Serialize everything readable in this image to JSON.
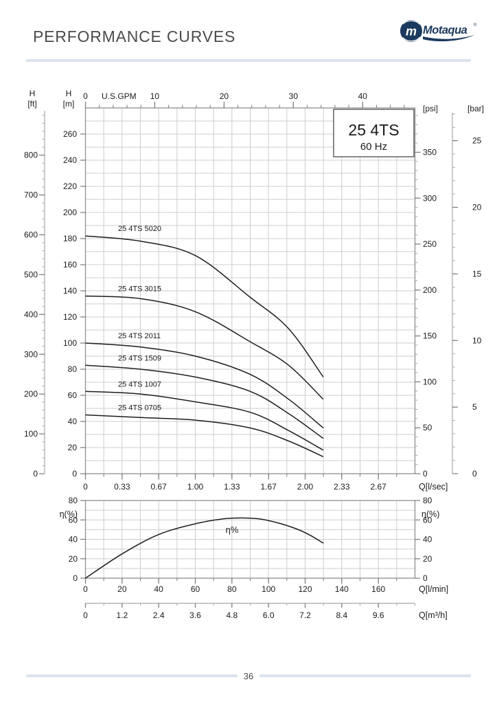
{
  "page": {
    "header": {
      "title": "PERFORMANCE CURVES",
      "logo_text": "Motaqua",
      "logo_mark": "m",
      "logo_reg": "®"
    },
    "footer": {
      "page_number": "36"
    },
    "colors": {
      "accent_rule": "#dbe2ee",
      "logo_navy": "#1b3a5f",
      "grid": "#cdcdcd",
      "border": "#8f8f8f",
      "tick": "#777777",
      "outer_axis": "#a8a8a8",
      "text": "#1a1a1a",
      "curve": "#1c1c1c",
      "title_gray": "#4a4a4a"
    }
  },
  "chart_data": [
    {
      "type": "line",
      "title": "25 4TS",
      "subtitle": "60 Hz",
      "xlabel": "Q[l/sec]",
      "ylabel": "H [m]",
      "xlim": [
        0,
        3.0
      ],
      "ylim": [
        0,
        280
      ],
      "grid": true,
      "axes": {
        "x_top": {
          "label": "U.S.GPM",
          "ticks": [
            0,
            10,
            20,
            30,
            40
          ],
          "minor_step": 2,
          "max": 47.5
        },
        "x_bottom": {
          "label": "Q[l/sec]",
          "tick_labels": [
            "0",
            "0.33",
            "0.67",
            "1.00",
            "1.33",
            "1.67",
            "2.00",
            "2.33",
            "2.67"
          ],
          "tick_step": 0.33333,
          "max": 3.0
        },
        "y_left_ft": {
          "header": [
            "H",
            "[ft]"
          ],
          "ticks": [
            800,
            700,
            600,
            500,
            400,
            300,
            200,
            100,
            0
          ],
          "minor_step": 20,
          "max": 900
        },
        "y_left_m": {
          "header": [
            "H",
            "[m]"
          ],
          "ticks": [
            260,
            240,
            220,
            200,
            180,
            160,
            140,
            120,
            100,
            80,
            60,
            40,
            20,
            0
          ]
        },
        "y_right_psi": {
          "label": "[psi]",
          "ticks": [
            350,
            300,
            250,
            200,
            150,
            100,
            50,
            0
          ],
          "minor_step": 10,
          "max": 390
        },
        "y_right_bar": {
          "label": "[bar]",
          "ticks": [
            25,
            20,
            15,
            10,
            5,
            0
          ],
          "minor_step": 1,
          "max": 27
        }
      },
      "series": [
        {
          "name": "25 4TS 5020",
          "points": [
            [
              0,
              182
            ],
            [
              0.5,
              178
            ],
            [
              1.0,
              167
            ],
            [
              1.5,
              135
            ],
            [
              1.85,
              111
            ],
            [
              2.165,
              74
            ]
          ]
        },
        {
          "name": "25 4TS 3015",
          "points": [
            [
              0,
              136
            ],
            [
              0.5,
              134
            ],
            [
              1.0,
              124
            ],
            [
              1.5,
              101
            ],
            [
              1.85,
              83
            ],
            [
              2.165,
              57
            ]
          ]
        },
        {
          "name": "25 4TS 2011",
          "points": [
            [
              0,
              100
            ],
            [
              0.5,
              97
            ],
            [
              1.0,
              90
            ],
            [
              1.5,
              76
            ],
            [
              1.85,
              57
            ],
            [
              2.165,
              35
            ]
          ]
        },
        {
          "name": "25 4TS 1509",
          "points": [
            [
              0,
              83
            ],
            [
              0.5,
              80
            ],
            [
              1.0,
              74
            ],
            [
              1.5,
              63
            ],
            [
              1.85,
              46
            ],
            [
              2.165,
              27
            ]
          ]
        },
        {
          "name": "25 4TS 1007",
          "points": [
            [
              0,
              63
            ],
            [
              0.5,
              61
            ],
            [
              1.0,
              55
            ],
            [
              1.5,
              47
            ],
            [
              1.85,
              33
            ],
            [
              2.165,
              18
            ]
          ]
        },
        {
          "name": "25 4TS 0705",
          "points": [
            [
              0,
              45
            ],
            [
              0.5,
              43
            ],
            [
              1.0,
              41
            ],
            [
              1.5,
              35
            ],
            [
              1.85,
              25
            ],
            [
              2.165,
              13
            ]
          ]
        }
      ]
    },
    {
      "type": "line",
      "title": "",
      "xlabel": "Q[l/min]",
      "ylabel": "η(%)",
      "xlim": [
        0,
        180
      ],
      "ylim": [
        0,
        80
      ],
      "grid": true,
      "axes": {
        "y_left": {
          "label": "η(%)",
          "ticks": [
            80,
            60,
            40,
            20,
            0
          ],
          "minor_step": 10
        },
        "y_right": {
          "label": "η(%)",
          "ticks": [
            80,
            60,
            40,
            20,
            0
          ],
          "minor_step": 10
        },
        "x_lmin": {
          "label": "Q[l/min]",
          "ticks": [
            0,
            20,
            40,
            60,
            80,
            100,
            120,
            140,
            160
          ],
          "minor_step": 10,
          "max": 180
        },
        "x_m3h": {
          "label": "Q[m³/h]",
          "tick_labels": [
            "0",
            "1.2",
            "2.4",
            "3.6",
            "4.8",
            "6.0",
            "7.2",
            "8.4",
            "9.6"
          ],
          "tick_step": 1.2,
          "max": 10.8
        }
      },
      "series": [
        {
          "name": "η%",
          "points": [
            [
              0,
              0
            ],
            [
              20,
              25
            ],
            [
              40,
              45
            ],
            [
              60,
              56
            ],
            [
              75,
              61
            ],
            [
              85,
              62
            ],
            [
              95,
              61
            ],
            [
              105,
              57
            ],
            [
              115,
              51
            ],
            [
              122,
              45
            ],
            [
              130,
              36
            ]
          ]
        }
      ]
    }
  ]
}
